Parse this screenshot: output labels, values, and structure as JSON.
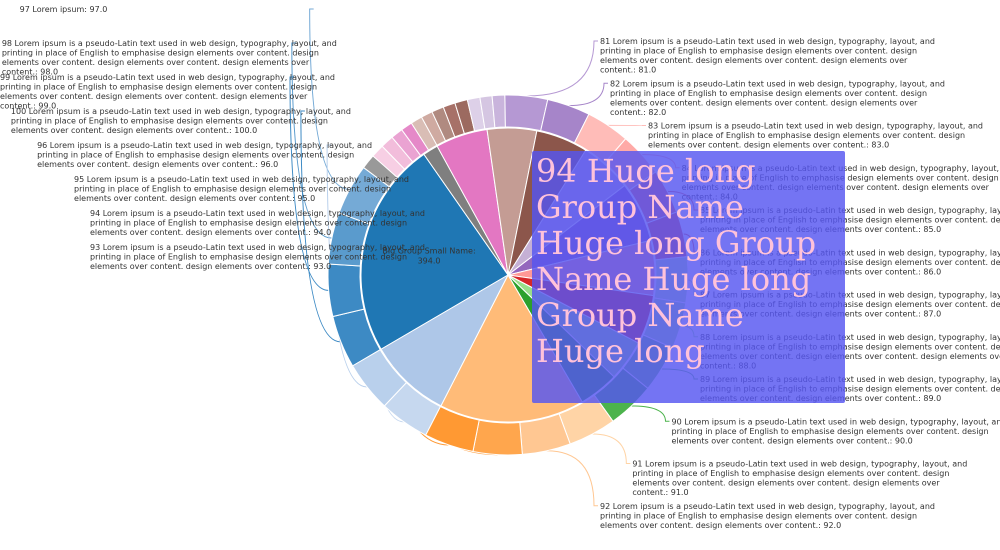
{
  "chart_data": {
    "type": "pie",
    "inner": [
      {
        "name": "Big Group Small Name",
        "value": 394.0,
        "color": "#1f77b4",
        "labeled": true
      },
      {
        "name": "",
        "value": 28,
        "color": "#7f7f7f",
        "labeled": false
      },
      {
        "name": "",
        "value": 95,
        "color": "#e377c2",
        "labeled": false
      },
      {
        "name": "",
        "value": 90,
        "color": "#c49c94",
        "labeled": false
      },
      {
        "name": "",
        "value": 95,
        "color": "#8c564b",
        "labeled": false
      },
      {
        "name": "",
        "value": 95,
        "color": "#c5b0d5",
        "labeled": false
      },
      {
        "name": "",
        "value": 110,
        "color": "#9467bd",
        "labeled": false
      },
      {
        "name": "",
        "value": 100,
        "color": "#ff9896",
        "labeled": false
      },
      {
        "name": "",
        "value": 90,
        "color": "#d62728",
        "labeled": false
      },
      {
        "name": "",
        "value": 75,
        "color": "#98df8a",
        "labeled": false
      },
      {
        "name": "",
        "value": 73,
        "color": "#2ca02c",
        "labeled": false
      },
      {
        "name": "",
        "value": 265,
        "color": "#ffbb78",
        "labeled": false
      },
      {
        "name": "",
        "value": 150,
        "color": "#aec7e8",
        "labeled": false
      }
    ],
    "outer": [
      {
        "value": 100.0,
        "color": "#3d8ac4",
        "label": "100 Lorem ipsum is a pseudo-Latin text used in web design, typography, layout, and printing in place of English to emphasise design elements over content. design elements over content. design elements over content.: 100.0"
      },
      {
        "value": 99.0,
        "color": "#3d8ac4",
        "label": "99 Lorem ipsum is a pseudo-Latin text used in web design, typography, layout, and printing in place of English to emphasise design elements over content. design elements over content. design elements over content. design elements over content.: 99.0"
      },
      {
        "value": 98.0,
        "color": "#5a9bcd",
        "label": "98 Lorem ipsum is a pseudo-Latin text used in web design, typography, layout, and printing in place of English to emphasise design elements over content. design elements over content. design elements over content. design elements over content.: 98.0"
      },
      {
        "value": 97.0,
        "color": "#75aad6",
        "label": "97 Lorem ipsum: 97.0"
      },
      {
        "value": 28,
        "color": "#999999",
        "label": ""
      },
      {
        "value": 25,
        "color": "#f7cfe4",
        "label": ""
      },
      {
        "value": 25,
        "color": "#f2bddb",
        "label": ""
      },
      {
        "value": 23,
        "color": "#eaa3d2",
        "label": ""
      },
      {
        "value": 22,
        "color": "#e589c8",
        "label": ""
      },
      {
        "value": 22,
        "color": "#d9bdb5",
        "label": ""
      },
      {
        "value": 22,
        "color": "#cfaaa1",
        "label": ""
      },
      {
        "value": 23,
        "color": "#b08a80",
        "label": ""
      },
      {
        "value": 23,
        "color": "#a77168",
        "label": ""
      },
      {
        "value": 24,
        "color": "#9c6a60",
        "label": ""
      },
      {
        "value": 24,
        "color": "#ddd0e8",
        "label": ""
      },
      {
        "value": 23,
        "color": "#d5c6e2",
        "label": ""
      },
      {
        "value": 24,
        "color": "#c9b4dc",
        "label": ""
      },
      {
        "value": 81.0,
        "color": "#b598d3",
        "label": "81 Lorem ipsum is a pseudo-Latin text used in web design, typography, layout, and printing in place of English to emphasise design elements over content. design elements over content. design elements over content. design elements over content.: 81.0"
      },
      {
        "value": 82.0,
        "color": "#a685c9",
        "label": "82 Lorem ipsum is a pseudo-Latin text used in web design, typography, layout, and printing in place of English to emphasise design elements over content. design elements over content. design elements over content. design elements over content.: 82.0"
      },
      {
        "value": 83.0,
        "color": "#ffbcb8",
        "label": "83 Lorem ipsum is a pseudo-Latin text used in web design, typography, layout, and printing in place of English to emphasise design elements over content. design elements over content. design elements over content.: 83.0"
      },
      {
        "value": 84.0,
        "color": "#ffaaa7",
        "label": "84 Lorem ipsum is a pseudo-Latin text used in web design, typography, layout, and printing in place of English to emphasise design elements over content. design elements over content. design elements over content. design elements over content.: 84.0"
      },
      {
        "value": 85.0,
        "color": "#e86a6a",
        "label": "85 Lorem ipsum is a pseudo-Latin text used in web design, typography, layout, and printing in place of English to emphasise design elements over content. design elements over content. design elements over content.: 85.0"
      },
      {
        "value": 86.0,
        "color": "#e05252",
        "label": "86 Lorem ipsum is a pseudo-Latin text used in web design, typography, layout, and printing in place of English to emphasise design elements over content. design elements over content. design elements over content.: 86.0"
      },
      {
        "value": 87.0,
        "color": "#b7e8a9",
        "label": "87 Lorem ipsum is a pseudo-Latin text used in web design, typography, layout, and printing in place of English to emphasise design elements over content. design elements over content. design elements over content.: 87.0"
      },
      {
        "value": 88.0,
        "color": "#a8e39a",
        "label": "88 Lorem ipsum is a pseudo-Latin text used in web design, typography, layout, and printing in place of English to emphasise design elements over content. design elements over content. design elements over content. design elements over content.: 88.0"
      },
      {
        "value": 89.0,
        "color": "#6fc06f",
        "label": "89 Lorem ipsum is a pseudo-Latin text used in web design, typography, layout, and printing in place of English to emphasise design elements over content. design elements over content. design elements over content.: 89.0"
      },
      {
        "value": 90.0,
        "color": "#4cb34c",
        "label": "90 Lorem ipsum is a pseudo-Latin text used in web design, typography, layout, and printing in place of English to emphasise design elements over content. design elements over content. design elements over content.: 90.0"
      },
      {
        "value": 91.0,
        "color": "#ffd4a6",
        "label": "91 Lorem ipsum is a pseudo-Latin text used in web design, typography, layout, and printing in place of English to emphasise design elements over content. design elements over content. design elements over content. design elements over content.: 91.0"
      },
      {
        "value": 92.0,
        "color": "#ffc792",
        "label": "92 Lorem ipsum is a pseudo-Latin text used in web design, typography, layout, and printing in place of English to emphasise design elements over content. design elements over content. design elements over content.: 92.0"
      },
      {
        "value": 93.0,
        "color": "#ffa64d",
        "label": "93 Lorem ipsum is a pseudo-Latin text used in web design, typography, layout, and printing in place of English to emphasise design elements over content. design elements over content. design elements over content.: 93.0"
      },
      {
        "value": 94.0,
        "color": "#ff9933",
        "label": "94 Lorem ipsum is a pseudo-Latin text used in web design, typography, layout, and printing in place of English to emphasise design elements over content. design elements over content. design elements over content.: 94.0"
      },
      {
        "value": 95.0,
        "color": "#c6d8ef",
        "label": "95 Lorem ipsum is a pseudo-Latin text used in web design, typography, layout, and printing in place of English to emphasise design elements over content. design elements over content. design elements over content.: 95.0"
      },
      {
        "value": 96.0,
        "color": "#b9d0ec",
        "label": "96 Lorem ipsum is a pseudo-Latin text used in web design, typography, layout, and printing in place of English to emphasise design elements over content. design elements over content. design elements over content.: 96.0"
      }
    ],
    "tooltip": "94 Huge long Group Name Huge long Group Name Huge long Group Name Huge long"
  }
}
